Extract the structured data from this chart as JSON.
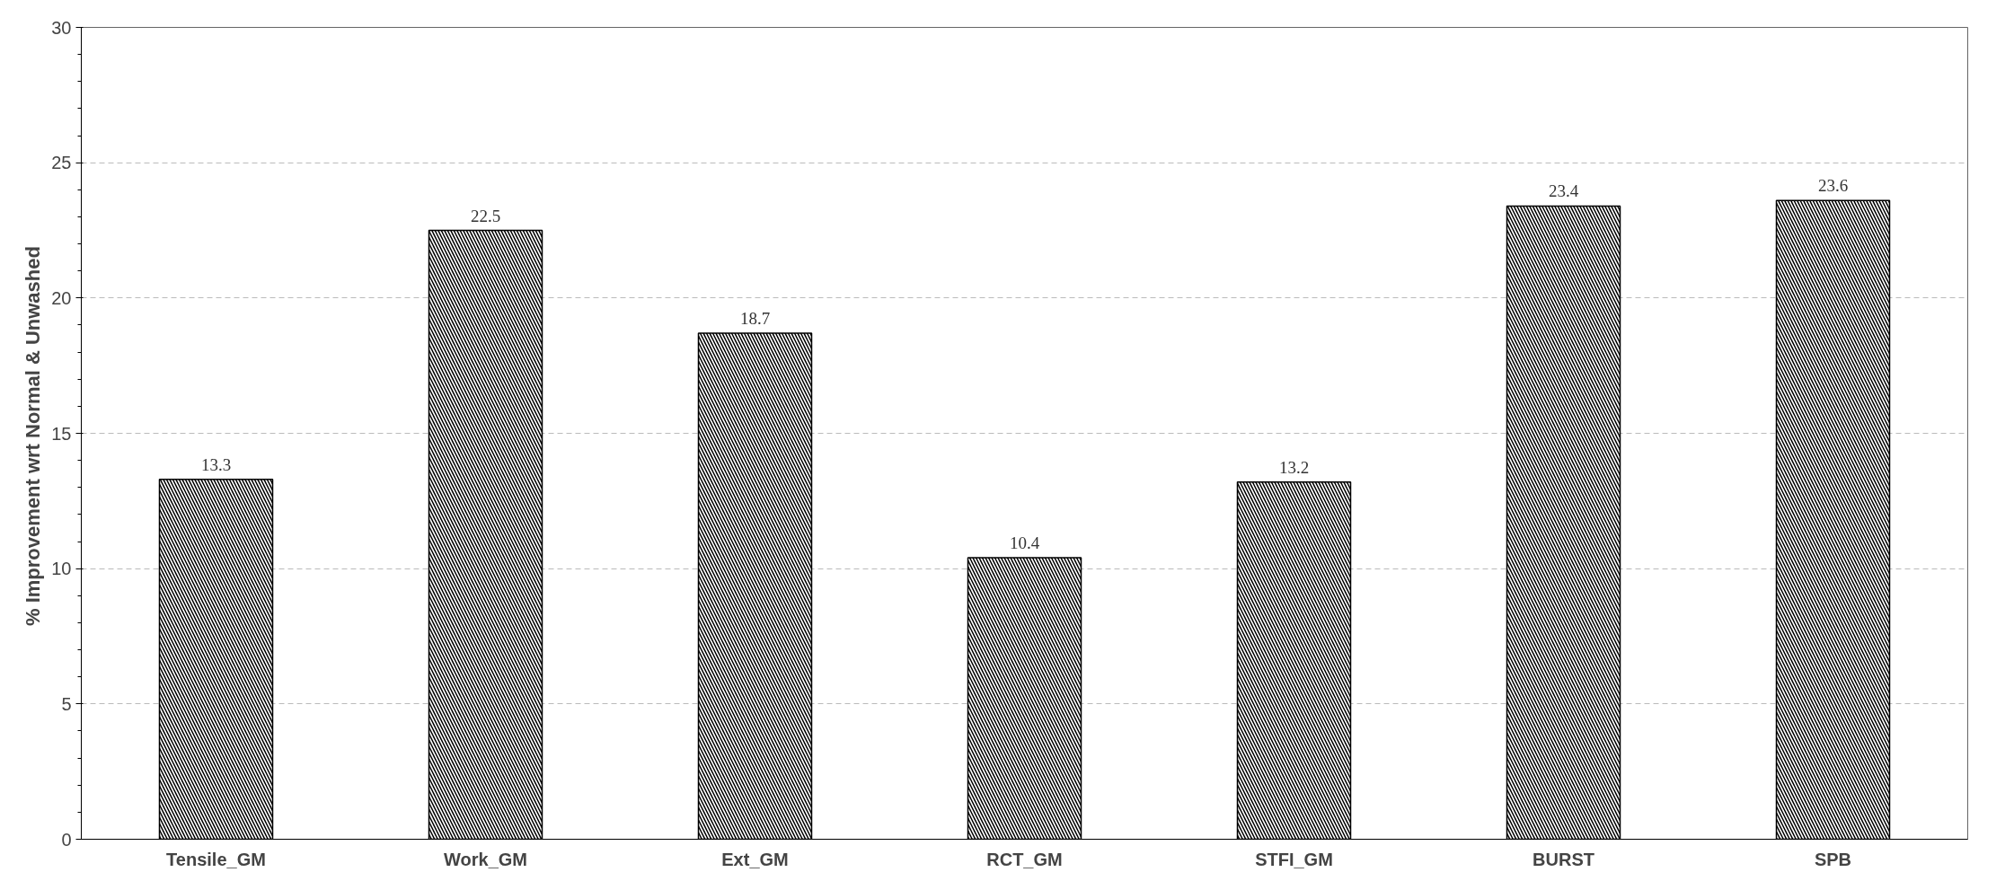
{
  "chart_data": {
    "type": "bar",
    "ylabel": "% Improvement  wrt Normal & Unwashed",
    "categories": [
      "Tensile_GM",
      "Work_GM",
      "Ext_GM",
      "RCT_GM",
      "STFI_GM",
      "BURST",
      "SPB"
    ],
    "values": [
      13.3,
      22.5,
      18.7,
      10.4,
      13.2,
      23.4,
      23.6
    ],
    "color": "#000000",
    "ylim": [
      0,
      30
    ],
    "yticks": [
      0,
      5,
      10,
      15,
      20,
      25,
      30
    ],
    "grid": "y",
    "data_labels": true
  }
}
